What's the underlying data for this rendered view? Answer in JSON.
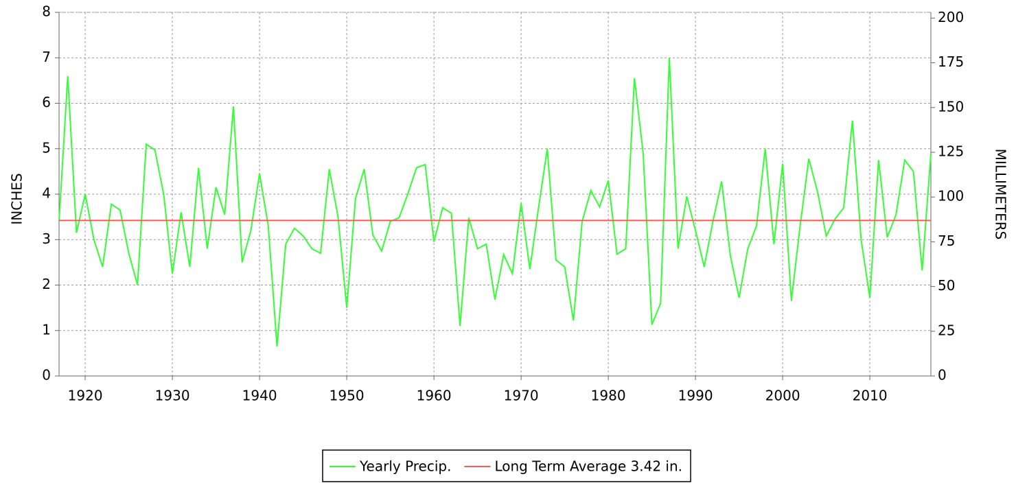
{
  "chart_data": {
    "type": "line",
    "ylabel": "INCHES",
    "y2label": "MILLIMETERS",
    "x": [
      1917,
      1918,
      1919,
      1920,
      1921,
      1922,
      1923,
      1924,
      1925,
      1926,
      1927,
      1928,
      1929,
      1930,
      1931,
      1932,
      1933,
      1934,
      1935,
      1936,
      1937,
      1938,
      1939,
      1940,
      1941,
      1942,
      1943,
      1944,
      1945,
      1946,
      1947,
      1948,
      1949,
      1950,
      1951,
      1952,
      1953,
      1954,
      1955,
      1956,
      1957,
      1958,
      1959,
      1960,
      1961,
      1962,
      1963,
      1964,
      1965,
      1966,
      1967,
      1968,
      1969,
      1970,
      1971,
      1972,
      1973,
      1974,
      1975,
      1976,
      1977,
      1978,
      1979,
      1980,
      1981,
      1982,
      1983,
      1984,
      1985,
      1986,
      1987,
      1988,
      1989,
      1990,
      1991,
      1992,
      1993,
      1994,
      1995,
      1996,
      1997,
      1998,
      1999,
      2000,
      2001,
      2002,
      2003,
      2004,
      2005,
      2006,
      2007,
      2008,
      2009,
      2010,
      2011,
      2012,
      2013,
      2014,
      2015,
      2016,
      2017
    ],
    "series": [
      {
        "name": "Yearly Precip.",
        "color": "#33ff33",
        "values": [
          3.4,
          6.6,
          3.15,
          4.0,
          3.0,
          2.4,
          3.78,
          3.65,
          2.7,
          2.0,
          5.1,
          4.97,
          4.0,
          2.25,
          3.6,
          2.4,
          4.58,
          2.8,
          4.15,
          3.55,
          5.93,
          2.5,
          3.2,
          4.45,
          3.3,
          0.65,
          2.9,
          3.25,
          3.08,
          2.8,
          2.7,
          4.55,
          3.5,
          1.5,
          3.9,
          4.55,
          3.1,
          2.75,
          3.4,
          3.48,
          4.0,
          4.58,
          4.65,
          2.95,
          3.7,
          3.58,
          1.1,
          3.48,
          2.8,
          2.9,
          1.68,
          2.67,
          2.25,
          3.8,
          2.35,
          3.7,
          5.0,
          2.55,
          2.4,
          1.22,
          3.4,
          4.08,
          3.72,
          4.3,
          2.68,
          2.8,
          6.55,
          4.9,
          1.13,
          1.6,
          7.0,
          2.8,
          3.95,
          3.2,
          2.4,
          3.4,
          4.28,
          2.65,
          1.72,
          2.8,
          3.3,
          5.0,
          2.9,
          4.67,
          1.65,
          3.3,
          4.78,
          4.05,
          3.08,
          3.45,
          3.7,
          5.62,
          3.0,
          1.72,
          4.75,
          3.05,
          3.55,
          4.75,
          4.5,
          2.32,
          4.88
        ]
      },
      {
        "name": "Long Term Average 3.42 in.",
        "color": "#ff5555",
        "value": 3.42
      }
    ],
    "xlim": [
      1917,
      2017
    ],
    "xticks": [
      1920,
      1930,
      1940,
      1950,
      1960,
      1970,
      1980,
      1990,
      2000,
      2010
    ],
    "ylim": [
      0,
      8
    ],
    "yticks": [
      0,
      1,
      2,
      3,
      4,
      5,
      6,
      7,
      8
    ],
    "y2lim": [
      0,
      203.2
    ],
    "y2ticks": [
      0,
      25,
      50,
      75,
      100,
      125,
      150,
      175,
      200
    ],
    "grid": true,
    "legend": "bottom"
  }
}
